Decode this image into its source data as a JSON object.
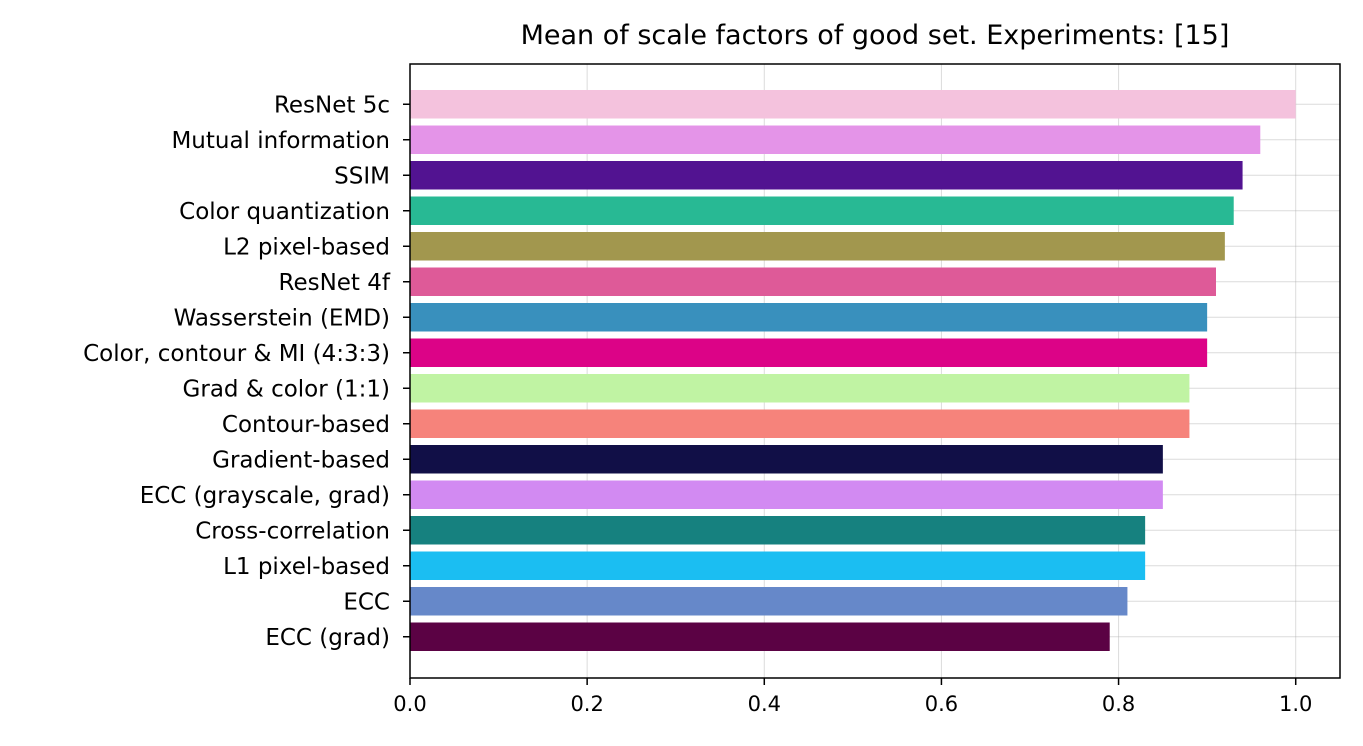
{
  "chart_data": {
    "type": "bar",
    "orientation": "horizontal",
    "title": "Mean of scale factors of good set. Experiments: [15]",
    "xlabel": "",
    "ylabel": "",
    "xlim": [
      0.0,
      1.05
    ],
    "xticks": [
      0.0,
      0.2,
      0.4,
      0.6,
      0.8,
      1.0
    ],
    "xtick_labels": [
      "0.0",
      "0.2",
      "0.4",
      "0.6",
      "0.8",
      "1.0"
    ],
    "grid": true,
    "categories": [
      "ResNet 5c",
      "Mutual information",
      "SSIM",
      "Color quantization",
      "L2 pixel-based",
      "ResNet 4f",
      "Wasserstein (EMD)",
      "Color, contour & MI (4:3:3)",
      "Grad & color (1:1)",
      "Contour-based",
      "Gradient-based",
      "ECC (grayscale, grad)",
      "Cross-correlation",
      "L1 pixel-based",
      "ECC",
      "ECC (grad)"
    ],
    "values": [
      1.0,
      0.96,
      0.94,
      0.93,
      0.92,
      0.91,
      0.9,
      0.9,
      0.88,
      0.88,
      0.85,
      0.85,
      0.83,
      0.83,
      0.81,
      0.79
    ],
    "colors": [
      "#f4c2dd",
      "#e494e8",
      "#521391",
      "#28b994",
      "#a2974e",
      "#de5a98",
      "#3990bd",
      "#dc0387",
      "#c0f3a3",
      "#f6837b",
      "#110f47",
      "#d28af2",
      "#16817f",
      "#1bbef2",
      "#6688c9",
      "#5b0244"
    ]
  }
}
